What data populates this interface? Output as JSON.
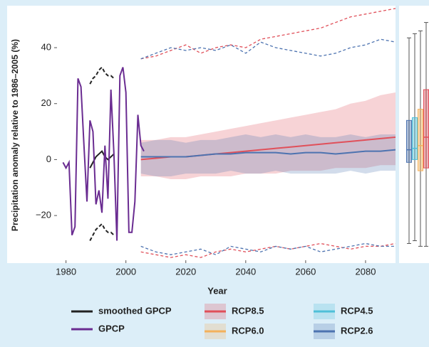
{
  "chart_data": {
    "type": "line",
    "y_label": "Precipitation anomaly relative to 1986–2005 (%)",
    "x_label": "Year",
    "xlim": [
      1977,
      2090
    ],
    "ylim": [
      -37,
      55
    ],
    "xticks": [
      1980,
      2000,
      2020,
      2040,
      2060,
      2080
    ],
    "yticks": [
      {
        "value": -20,
        "label": "−20"
      },
      0,
      20,
      40
    ],
    "series": [
      {
        "name": "smoothed GPCP",
        "color": "#222222",
        "x": [
          1988,
          1989,
          1990,
          1991,
          1992,
          1993,
          1994,
          1995,
          1996
        ],
        "values": [
          -3,
          -1,
          1,
          2,
          3,
          1,
          0,
          1,
          2
        ],
        "upper": [
          27,
          29,
          30,
          32,
          33,
          31,
          30,
          30,
          29
        ],
        "lower": [
          -29,
          -27,
          -25,
          -24,
          -23,
          -25,
          -26,
          -26,
          -27
        ]
      },
      {
        "name": "GPCP",
        "color": "#6a2c91",
        "x": [
          1979,
          1980,
          1981,
          1982,
          1983,
          1984,
          1985,
          1986,
          1987,
          1988,
          1989,
          1990,
          1991,
          1992,
          1993,
          1994,
          1995,
          1996,
          1997,
          1998,
          1999,
          2000,
          2001,
          2002,
          2003,
          2004,
          2005,
          2006
        ],
        "values": [
          -1,
          -3,
          -1,
          -27,
          -24,
          29,
          26,
          5,
          -15,
          14,
          10,
          -16,
          -11,
          -19,
          5,
          -14,
          25,
          2,
          -29,
          30,
          33,
          24,
          -26,
          -26,
          -15,
          16,
          5,
          3
        ]
      },
      {
        "name": "RCP8.5",
        "color": "#e0505a",
        "x": [
          2005,
          2010,
          2015,
          2020,
          2025,
          2030,
          2035,
          2040,
          2045,
          2050,
          2055,
          2060,
          2065,
          2070,
          2075,
          2080,
          2085,
          2090
        ],
        "values": [
          0,
          0.5,
          1,
          1,
          1.5,
          2,
          2.5,
          3,
          3.5,
          4,
          4.5,
          5,
          5.5,
          6,
          6.5,
          7,
          7.5,
          8
        ],
        "band_upper": [
          7,
          7,
          8,
          8,
          9,
          10,
          11,
          12,
          13,
          14,
          15,
          16,
          17,
          18,
          20,
          21,
          23,
          24
        ],
        "band_lower": [
          -6,
          -6,
          -7,
          -7,
          -6,
          -6,
          -6,
          -5,
          -5,
          -5,
          -4,
          -4,
          -4,
          -3,
          -3,
          -3,
          -2,
          -2
        ],
        "ext_upper": [
          36,
          37,
          39,
          41,
          38,
          40,
          41,
          40,
          43,
          44,
          45,
          46,
          47,
          49,
          51,
          52,
          53,
          54
        ],
        "ext_lower": [
          -33,
          -34,
          -35,
          -34,
          -35,
          -33,
          -32,
          -33,
          -32,
          -31,
          -32,
          -31,
          -30,
          -31,
          -32,
          -31,
          -31,
          -30
        ],
        "box": [
          -31,
          -3,
          8,
          25,
          49
        ]
      },
      {
        "name": "RCP6.0",
        "color": "#f3b15c",
        "box": [
          -31,
          -4,
          5,
          18,
          46
        ]
      },
      {
        "name": "RCP4.5",
        "color": "#4fc0d8",
        "box": [
          -29,
          0,
          4,
          15,
          45
        ]
      },
      {
        "name": "RCP2.6",
        "color": "#4d73b0",
        "x": [
          2005,
          2010,
          2015,
          2020,
          2025,
          2030,
          2035,
          2040,
          2045,
          2050,
          2055,
          2060,
          2065,
          2070,
          2075,
          2080,
          2085,
          2090
        ],
        "values": [
          1,
          1,
          1,
          1,
          1.5,
          2,
          2,
          2.5,
          2.5,
          2.5,
          2,
          2.5,
          2.5,
          2,
          2.5,
          3,
          3,
          3.5
        ],
        "band_upper": [
          6,
          7,
          7,
          6,
          7,
          7,
          8,
          9,
          8,
          9,
          8,
          9,
          8,
          8,
          9,
          8,
          9,
          9
        ],
        "band_lower": [
          -5,
          -6,
          -6,
          -5,
          -5,
          -5,
          -4,
          -5,
          -5,
          -4,
          -5,
          -5,
          -5,
          -5,
          -4,
          -5,
          -4,
          -4
        ],
        "ext_upper": [
          36,
          38,
          40,
          39,
          40,
          39,
          41,
          38,
          42,
          40,
          39,
          38,
          37,
          38,
          40,
          41,
          43,
          42
        ],
        "ext_lower": [
          -31,
          -33,
          -34,
          -33,
          -32,
          -34,
          -31,
          -32,
          -33,
          -31,
          -32,
          -31,
          -33,
          -32,
          -31,
          -30,
          -31,
          -31
        ],
        "box": [
          -30,
          -1,
          3.5,
          14,
          43.5
        ]
      }
    ]
  }
}
